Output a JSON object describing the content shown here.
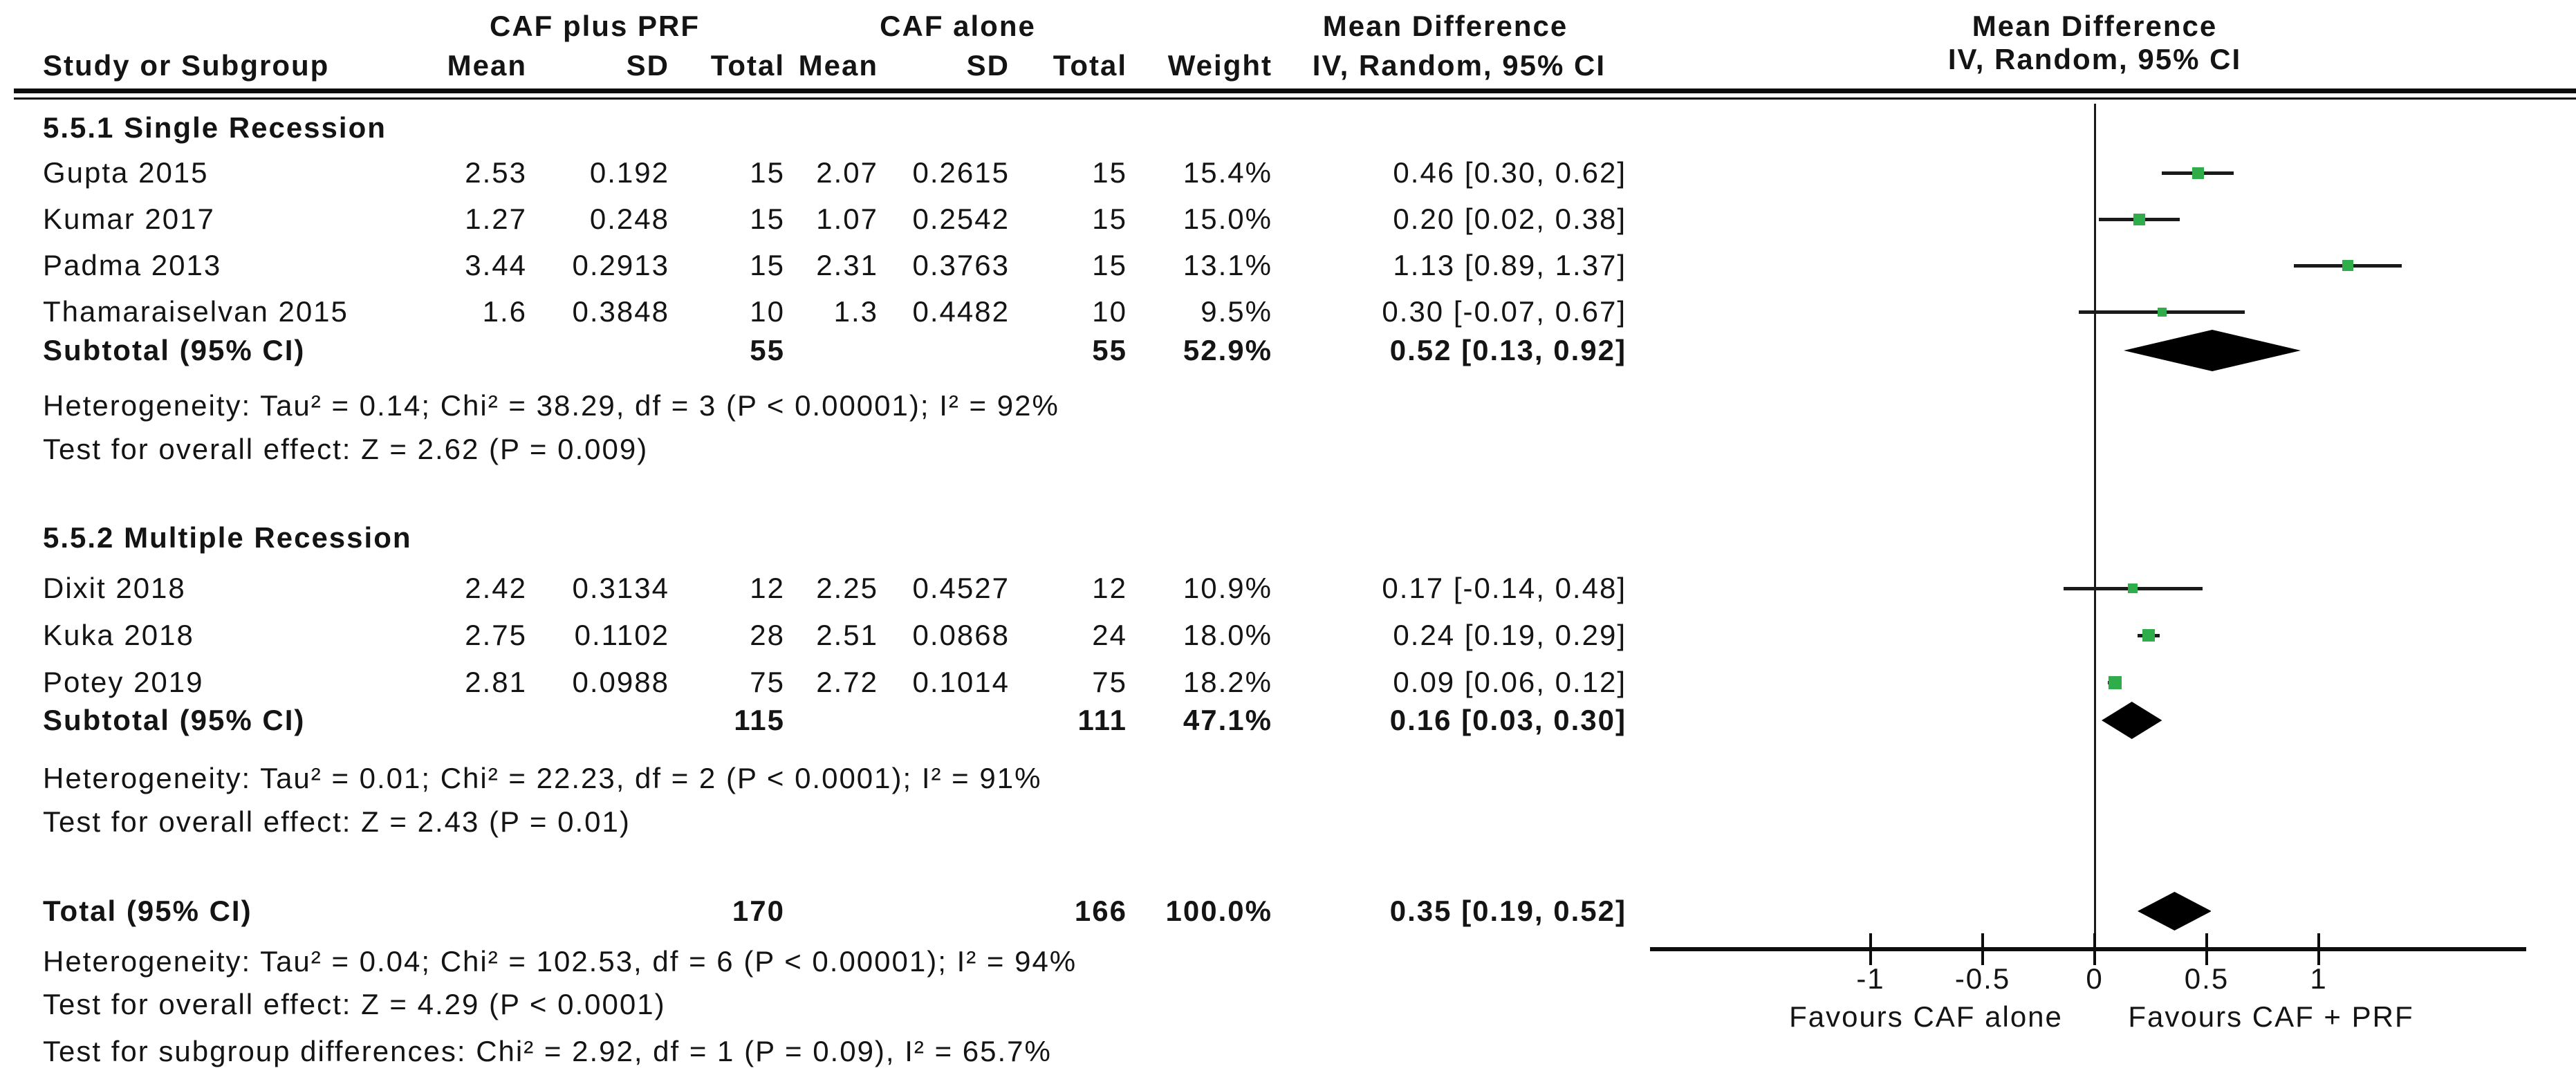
{
  "header": {
    "group1": "CAF plus PRF",
    "group2": "CAF alone",
    "md_text_col": "Mean Difference",
    "md_plot_col": "Mean Difference",
    "columns": {
      "study": "Study or Subgroup",
      "mean": "Mean",
      "sd": "SD",
      "total": "Total",
      "weight": "Weight",
      "iv": "IV, Random, 95% CI"
    }
  },
  "groups": [
    {
      "label": "5.5.1 Single Recession",
      "studies": [
        {
          "name": "Gupta 2015",
          "mean1": "2.53",
          "sd1": "0.192",
          "total1": "15",
          "mean2": "2.07",
          "sd2": "0.2615",
          "total2": "15",
          "weight": "15.4%",
          "ci": "0.46 [0.30, 0.62]"
        },
        {
          "name": "Kumar 2017",
          "mean1": "1.27",
          "sd1": "0.248",
          "total1": "15",
          "mean2": "1.07",
          "sd2": "0.2542",
          "total2": "15",
          "weight": "15.0%",
          "ci": "0.20 [0.02, 0.38]"
        },
        {
          "name": "Padma 2013",
          "mean1": "3.44",
          "sd1": "0.2913",
          "total1": "15",
          "mean2": "2.31",
          "sd2": "0.3763",
          "total2": "15",
          "weight": "13.1%",
          "ci": "1.13 [0.89, 1.37]"
        },
        {
          "name": "Thamaraiselvan 2015",
          "mean1": "1.6",
          "sd1": "0.3848",
          "total1": "10",
          "mean2": "1.3",
          "sd2": "0.4482",
          "total2": "10",
          "weight": "9.5%",
          "ci": "0.30 [-0.07, 0.67]"
        }
      ],
      "subtotal": {
        "label": "Subtotal (95% CI)",
        "total1": "55",
        "total2": "55",
        "weight": "52.9%",
        "ci": "0.52 [0.13, 0.92]"
      },
      "heterogeneity": "Heterogeneity: Tau² = 0.14; Chi² = 38.29, df = 3 (P < 0.00001); I² = 92%",
      "overall_effect": "Test for overall effect: Z = 2.62 (P = 0.009)"
    },
    {
      "label": "5.5.2 Multiple Recession",
      "studies": [
        {
          "name": "Dixit 2018",
          "mean1": "2.42",
          "sd1": "0.3134",
          "total1": "12",
          "mean2": "2.25",
          "sd2": "0.4527",
          "total2": "12",
          "weight": "10.9%",
          "ci": "0.17 [-0.14, 0.48]"
        },
        {
          "name": "Kuka 2018",
          "mean1": "2.75",
          "sd1": "0.1102",
          "total1": "28",
          "mean2": "2.51",
          "sd2": "0.0868",
          "total2": "24",
          "weight": "18.0%",
          "ci": "0.24 [0.19, 0.29]"
        },
        {
          "name": "Potey 2019",
          "mean1": "2.81",
          "sd1": "0.0988",
          "total1": "75",
          "mean2": "2.72",
          "sd2": "0.1014",
          "total2": "75",
          "weight": "18.2%",
          "ci": "0.09 [0.06, 0.12]"
        }
      ],
      "subtotal": {
        "label": "Subtotal (95% CI)",
        "total1": "115",
        "total2": "111",
        "weight": "47.1%",
        "ci": "0.16 [0.03, 0.30]"
      },
      "heterogeneity": "Heterogeneity: Tau² = 0.01; Chi² = 22.23, df = 2 (P < 0.0001); I² = 91%",
      "overall_effect": "Test for overall effect: Z = 2.43 (P = 0.01)"
    }
  ],
  "total": {
    "label": "Total (95% CI)",
    "total1": "170",
    "total2": "166",
    "weight": "100.0%",
    "ci": "0.35 [0.19, 0.52]",
    "heterogeneity": "Heterogeneity: Tau² = 0.04; Chi² = 102.53, df = 6 (P < 0.00001); I² = 94%",
    "overall_effect": "Test for overall effect: Z = 4.29 (P < 0.0001)",
    "subgroup_diff": "Test for subgroup differences: Chi² = 2.92, df = 1 (P = 0.09), I² = 65.7%"
  },
  "axis": {
    "tick_labels": [
      "-1",
      "-0.5",
      "0",
      "0.5",
      "1"
    ],
    "favours_left": "Favours CAF alone",
    "favours_right": "Favours CAF + PRF"
  },
  "colors": {
    "marker_green": "#2fad4a",
    "ink": "#1a1a1a"
  },
  "chart_data": {
    "type": "scatter",
    "subtype": "forest-plot-mean-difference",
    "title": "Mean Difference IV, Random, 95% CI",
    "x_ticks": [
      -1,
      -0.5,
      0,
      0.5,
      1
    ],
    "xlim": [
      -1.98,
      1.93
    ],
    "grid": false,
    "zero_line": 0,
    "xlabel_left": "Favours CAF alone",
    "xlabel_right": "Favours CAF + PRF",
    "studies": [
      {
        "name": "Gupta 2015",
        "group": "5.5.1 Single Recession",
        "est": 0.46,
        "lo": 0.3,
        "hi": 0.62,
        "weight_pct": 15.4
      },
      {
        "name": "Kumar 2017",
        "group": "5.5.1 Single Recession",
        "est": 0.2,
        "lo": 0.02,
        "hi": 0.38,
        "weight_pct": 15.0
      },
      {
        "name": "Padma 2013",
        "group": "5.5.1 Single Recession",
        "est": 1.13,
        "lo": 0.89,
        "hi": 1.37,
        "weight_pct": 13.1
      },
      {
        "name": "Thamaraiselvan 2015",
        "group": "5.5.1 Single Recession",
        "est": 0.3,
        "lo": -0.07,
        "hi": 0.67,
        "weight_pct": 9.5
      },
      {
        "name": "Dixit 2018",
        "group": "5.5.2 Multiple Recession",
        "est": 0.17,
        "lo": -0.14,
        "hi": 0.48,
        "weight_pct": 10.9
      },
      {
        "name": "Kuka 2018",
        "group": "5.5.2 Multiple Recession",
        "est": 0.24,
        "lo": 0.19,
        "hi": 0.29,
        "weight_pct": 18.0
      },
      {
        "name": "Potey 2019",
        "group": "5.5.2 Multiple Recession",
        "est": 0.09,
        "lo": 0.06,
        "hi": 0.12,
        "weight_pct": 18.2
      }
    ],
    "subtotals": [
      {
        "label": "Subtotal 5.5.1 Single Recession",
        "est": 0.52,
        "lo": 0.13,
        "hi": 0.92,
        "weight_pct": 52.9
      },
      {
        "label": "Subtotal 5.5.2 Multiple Recession",
        "est": 0.16,
        "lo": 0.03,
        "hi": 0.3,
        "weight_pct": 47.1
      }
    ],
    "total": {
      "label": "Total (95% CI)",
      "est": 0.35,
      "lo": 0.19,
      "hi": 0.52,
      "weight_pct": 100.0
    }
  }
}
